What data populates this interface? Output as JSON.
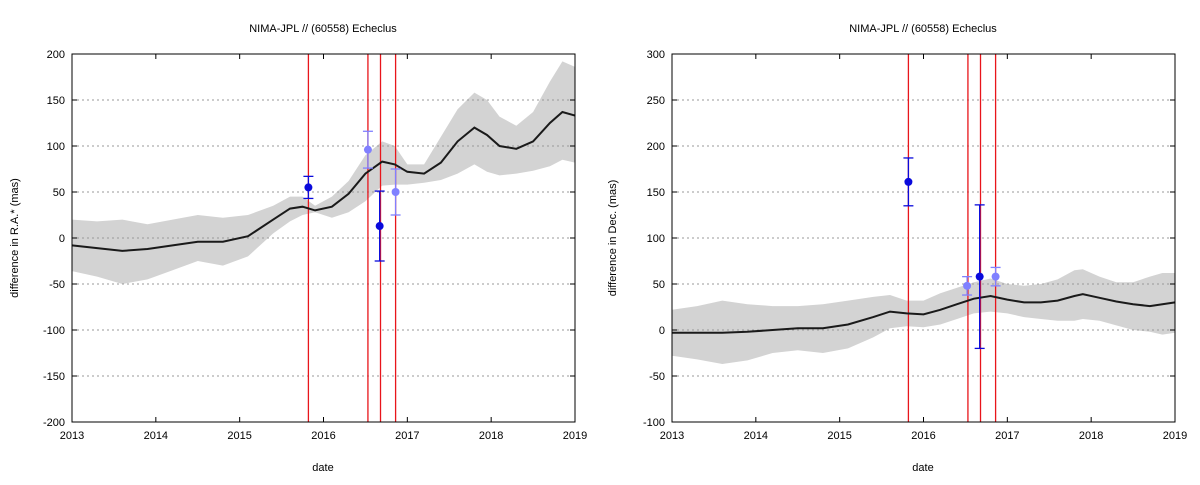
{
  "chart_data": [
    {
      "type": "line",
      "title": "NIMA-JPL // (60558) Echeclus",
      "xlabel": "date",
      "ylabel": "difference in R.A.* (mas)",
      "xlim": [
        2013,
        2019
      ],
      "ylim": [
        -200,
        200
      ],
      "xticks": [
        "2013",
        "2014",
        "2015",
        "2016",
        "2017",
        "2018",
        "2019"
      ],
      "yticks": [
        "-200",
        "-150",
        "-100",
        "-50",
        "0",
        "50",
        "100",
        "150",
        "200"
      ],
      "grid": true,
      "colors": {
        "line": "#1a1a1a",
        "band": "#d3d3d3",
        "vline": "#e8151b",
        "obs_dark": "#0a0adc",
        "obs_light": "#8080ff"
      },
      "vlines": [
        2015.82,
        2016.53,
        2016.68,
        2016.86
      ],
      "series": [
        {
          "kind": "line",
          "x": [
            2013.0,
            2013.3,
            2013.6,
            2013.9,
            2014.2,
            2014.5,
            2014.8,
            2015.1,
            2015.4,
            2015.6,
            2015.75,
            2015.9,
            2016.1,
            2016.3,
            2016.5,
            2016.7,
            2016.85,
            2017.0,
            2017.2,
            2017.4,
            2017.6,
            2017.8,
            2017.95,
            2018.1,
            2018.3,
            2018.5,
            2018.7,
            2018.85,
            2019.0
          ],
          "y": [
            -8,
            -11,
            -14,
            -12,
            -8,
            -4,
            -4,
            2,
            20,
            32,
            34,
            30,
            34,
            48,
            70,
            83,
            80,
            72,
            70,
            82,
            105,
            120,
            112,
            100,
            97,
            105,
            125,
            137,
            133
          ]
        },
        {
          "kind": "band",
          "x": [
            2013.0,
            2013.3,
            2013.6,
            2013.9,
            2014.2,
            2014.5,
            2014.8,
            2015.1,
            2015.4,
            2015.6,
            2015.75,
            2015.9,
            2016.1,
            2016.3,
            2016.5,
            2016.7,
            2016.85,
            2017.0,
            2017.2,
            2017.4,
            2017.6,
            2017.8,
            2017.95,
            2018.1,
            2018.3,
            2018.5,
            2018.7,
            2018.85,
            2019.0
          ],
          "y_low": [
            -36,
            -42,
            -50,
            -45,
            -35,
            -25,
            -30,
            -20,
            5,
            18,
            25,
            28,
            22,
            28,
            40,
            57,
            58,
            58,
            60,
            63,
            70,
            80,
            72,
            68,
            70,
            73,
            78,
            85,
            82
          ],
          "y_high": [
            20,
            18,
            20,
            15,
            20,
            25,
            22,
            25,
            35,
            45,
            45,
            35,
            45,
            62,
            90,
            105,
            100,
            80,
            80,
            110,
            140,
            158,
            150,
            132,
            122,
            137,
            170,
            192,
            186
          ]
        },
        {
          "kind": "points",
          "name": "",
          "color": "#0a0adc",
          "x": [
            2015.82,
            2016.67
          ],
          "y": [
            55,
            13
          ],
          "err": [
            12,
            38
          ]
        },
        {
          "kind": "points",
          "name": "",
          "color": "#8080ff",
          "x": [
            2016.53,
            2016.86
          ],
          "y": [
            96,
            50
          ],
          "err": [
            20,
            25
          ]
        }
      ]
    },
    {
      "type": "line",
      "title": "NIMA-JPL // (60558) Echeclus",
      "xlabel": "date",
      "ylabel": "difference in Dec. (mas)",
      "xlim": [
        2013,
        2019
      ],
      "ylim": [
        -100,
        300
      ],
      "xticks": [
        "2013",
        "2014",
        "2015",
        "2016",
        "2017",
        "2018",
        "2019"
      ],
      "yticks": [
        "-100",
        "-50",
        "0",
        "50",
        "100",
        "150",
        "200",
        "250",
        "300"
      ],
      "grid": true,
      "colors": {
        "line": "#1a1a1a",
        "band": "#d3d3d3",
        "vline": "#e8151b",
        "obs_dark": "#0a0adc",
        "obs_light": "#8080ff"
      },
      "vlines": [
        2015.82,
        2016.53,
        2016.68,
        2016.86
      ],
      "series": [
        {
          "kind": "line",
          "x": [
            2013.0,
            2013.3,
            2013.6,
            2013.9,
            2014.2,
            2014.5,
            2014.8,
            2015.1,
            2015.4,
            2015.6,
            2015.8,
            2016.0,
            2016.2,
            2016.4,
            2016.6,
            2016.8,
            2017.0,
            2017.2,
            2017.4,
            2017.6,
            2017.8,
            2017.9,
            2018.1,
            2018.3,
            2018.5,
            2018.7,
            2018.85,
            2019.0
          ],
          "y": [
            -3,
            -3,
            -3,
            -2,
            0,
            2,
            2,
            6,
            14,
            20,
            18,
            17,
            22,
            28,
            34,
            37,
            33,
            30,
            30,
            32,
            37,
            39,
            35,
            31,
            28,
            26,
            28,
            30
          ],
          "color": "#1a1a1a"
        },
        {
          "kind": "band",
          "x": [
            2013.0,
            2013.3,
            2013.6,
            2013.9,
            2014.2,
            2014.5,
            2014.8,
            2015.1,
            2015.4,
            2015.6,
            2015.8,
            2016.0,
            2016.2,
            2016.4,
            2016.6,
            2016.8,
            2017.0,
            2017.2,
            2017.4,
            2017.6,
            2017.8,
            2017.9,
            2018.1,
            2018.3,
            2018.5,
            2018.7,
            2018.85,
            2019.0
          ],
          "y_low": [
            -28,
            -32,
            -37,
            -33,
            -25,
            -22,
            -25,
            -20,
            -8,
            2,
            4,
            3,
            6,
            12,
            18,
            20,
            18,
            14,
            12,
            10,
            10,
            12,
            10,
            5,
            0,
            -2,
            -5,
            -3
          ],
          "y_high": [
            22,
            26,
            32,
            28,
            26,
            26,
            28,
            32,
            36,
            38,
            32,
            32,
            40,
            46,
            52,
            56,
            50,
            48,
            50,
            55,
            65,
            66,
            58,
            52,
            52,
            58,
            62,
            62
          ]
        },
        {
          "kind": "points",
          "name": "",
          "color": "#0a0adc",
          "x": [
            2015.82,
            2016.67
          ],
          "y": [
            161,
            58
          ],
          "err": [
            26,
            78
          ]
        },
        {
          "kind": "points",
          "name": "",
          "color": "#8080ff",
          "x": [
            2016.52,
            2016.86
          ],
          "y": [
            48,
            58
          ],
          "err": [
            10,
            10
          ]
        }
      ]
    }
  ]
}
